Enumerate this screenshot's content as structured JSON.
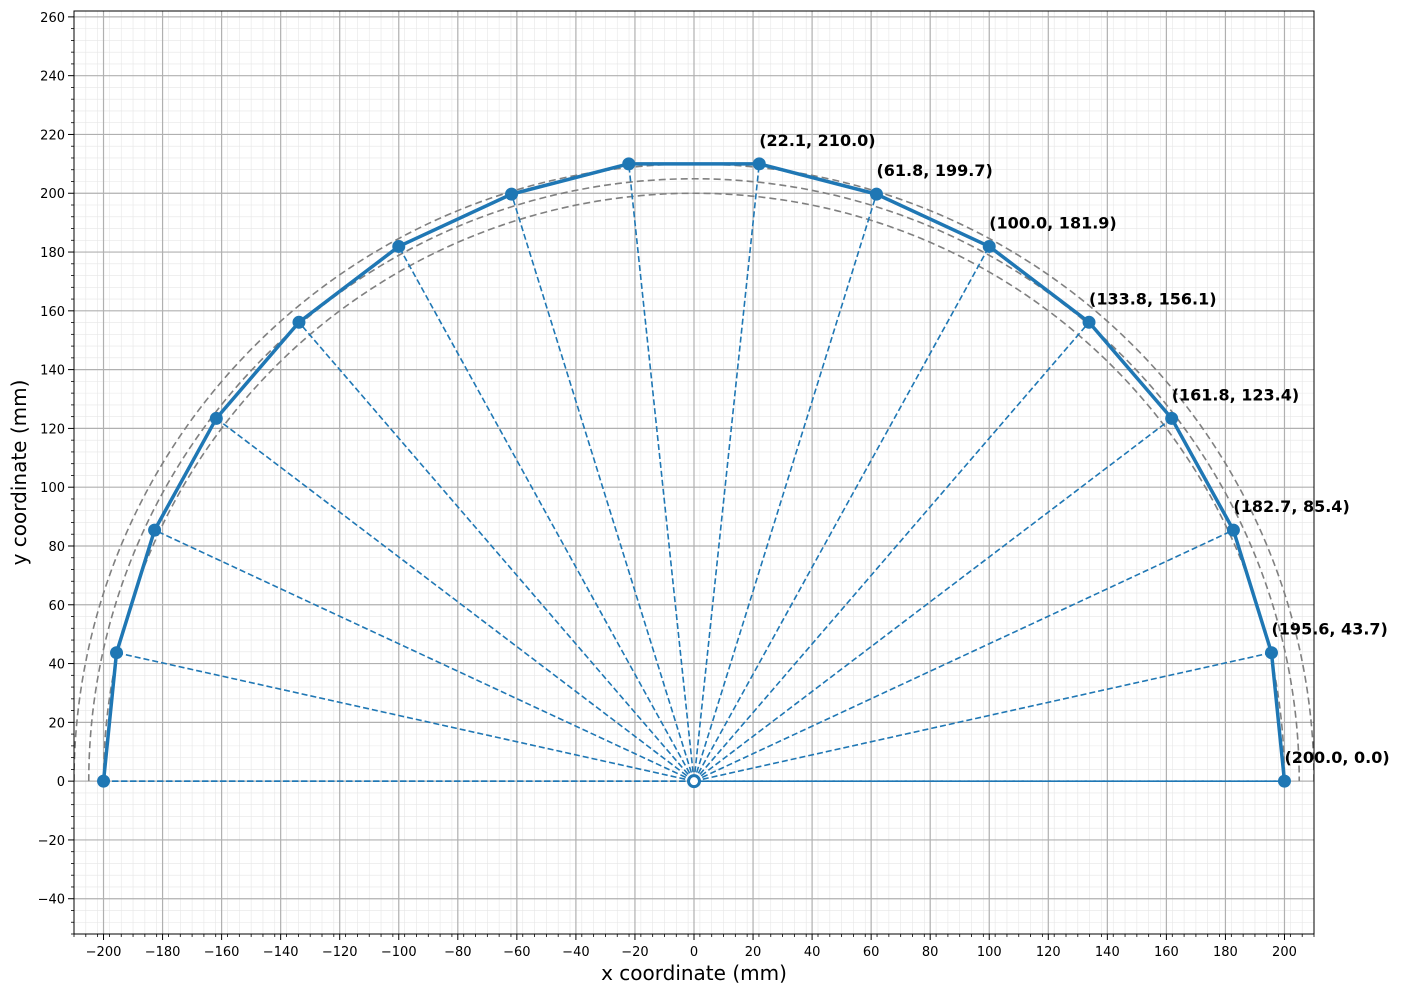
{
  "chart_data": {
    "type": "line",
    "xlabel": "x coordinate (mm)",
    "ylabel": "y coordinate (mm)",
    "xlim": [
      -210,
      210
    ],
    "ylim": [
      -52,
      262
    ],
    "x_ticks": [
      -200,
      -180,
      -160,
      -140,
      -120,
      -100,
      -80,
      -60,
      -40,
      -20,
      0,
      20,
      40,
      60,
      80,
      100,
      120,
      140,
      160,
      180,
      200
    ],
    "y_ticks": [
      -40,
      -20,
      0,
      20,
      40,
      60,
      80,
      100,
      120,
      140,
      160,
      180,
      200,
      220,
      240,
      260
    ],
    "x_tick_labels": [
      "−200",
      "−180",
      "−160",
      "−140",
      "−120",
      "−100",
      "−80",
      "−60",
      "−40",
      "−20",
      "0",
      "20",
      "40",
      "60",
      "80",
      "100",
      "120",
      "140",
      "160",
      "180",
      "200"
    ],
    "y_tick_labels": [
      "−40",
      "−20",
      "0",
      "20",
      "40",
      "60",
      "80",
      "100",
      "120",
      "140",
      "160",
      "180",
      "200",
      "220",
      "240",
      "260"
    ],
    "grid": true,
    "minor_grid": true,
    "guide_arcs_radius": [
      200,
      205,
      210
    ],
    "origin": [
      0,
      0
    ],
    "series": [
      {
        "x": [
          -200.0,
          -195.6,
          -182.7,
          -161.8,
          -133.8,
          -100.0,
          -61.8,
          -22.1,
          22.1,
          61.8,
          100.0,
          133.8,
          161.8,
          182.7,
          195.6,
          200.0
        ],
        "y": [
          0.0,
          43.7,
          85.4,
          123.4,
          156.1,
          181.9,
          199.7,
          210.0,
          210.0,
          199.7,
          181.9,
          156.1,
          123.4,
          85.4,
          43.7,
          0.0
        ]
      }
    ],
    "annotations": [
      {
        "text": "(22.1, 210.0)",
        "x": 22.1,
        "y": 210.0
      },
      {
        "text": "(61.8, 199.7)",
        "x": 61.8,
        "y": 199.7
      },
      {
        "text": "(100.0, 181.9)",
        "x": 100.0,
        "y": 181.9
      },
      {
        "text": "(133.8, 156.1)",
        "x": 133.8,
        "y": 156.1
      },
      {
        "text": "(161.8, 123.4)",
        "x": 161.8,
        "y": 123.4
      },
      {
        "text": "(182.7, 85.4)",
        "x": 182.7,
        "y": 85.4
      },
      {
        "text": "(195.6, 43.7)",
        "x": 195.6,
        "y": 43.7
      },
      {
        "text": "(200.0, 0.0)",
        "x": 200.0,
        "y": 0.0
      }
    ],
    "colors": {
      "series": "#1f77b4",
      "guide_arcs": "#808080",
      "major_grid": "#b0b0b0",
      "minor_grid": "#e6e6e6"
    }
  }
}
